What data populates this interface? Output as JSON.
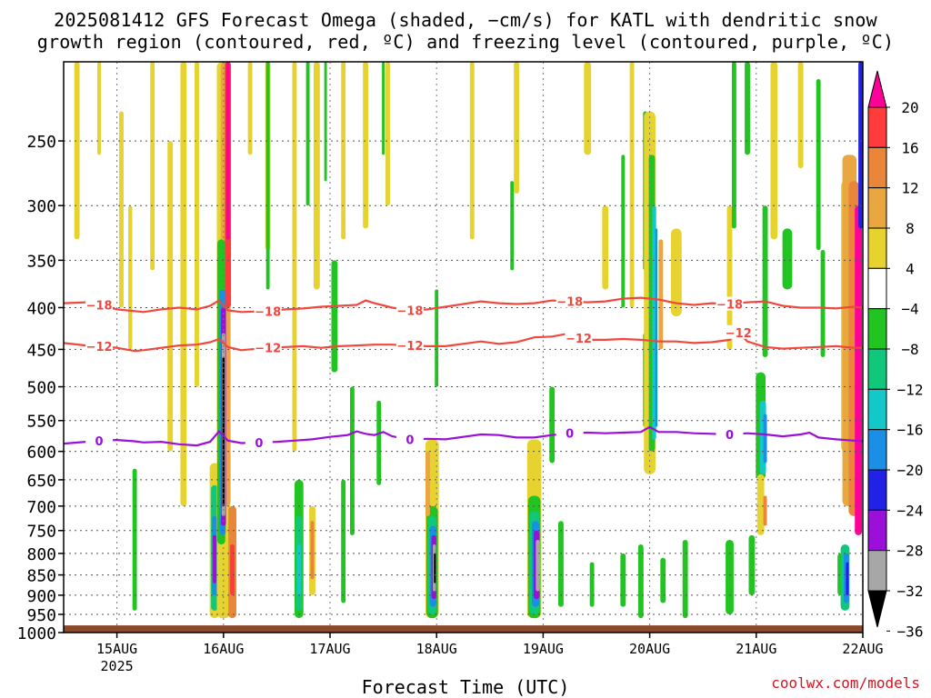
{
  "title": {
    "line1": "2025081412 GFS Forecast Omega (shaded, −cm/s) for KATL with dendritic snow",
    "line2": "growth region (contoured, red, ºC) and freezing level (contoured, purple, ºC)"
  },
  "credit": "coolwx.com/models",
  "chart_data": {
    "type": "heatmap",
    "title": "2025081412 GFS Forecast Omega (shaded, −cm/s) for KATL with dendritic snow growth region (contoured, red, ºC) and freezing level (contoured, purple, ºC)",
    "xlabel": "Forecast Time (UTC)",
    "ylabel": "",
    "x_ticks": [
      {
        "label": "15AUG",
        "sub": "2025",
        "hours": 12
      },
      {
        "label": "16AUG",
        "sub": "",
        "hours": 36
      },
      {
        "label": "17AUG",
        "sub": "",
        "hours": 60
      },
      {
        "label": "18AUG",
        "sub": "",
        "hours": 84
      },
      {
        "label": "19AUG",
        "sub": "",
        "hours": 108
      },
      {
        "label": "20AUG",
        "sub": "",
        "hours": 132
      },
      {
        "label": "21AUG",
        "sub": "",
        "hours": 156
      },
      {
        "label": "22AUG",
        "sub": "",
        "hours": 180
      }
    ],
    "xlim_hours": [
      0,
      180
    ],
    "y_ticks": [
      250,
      300,
      350,
      400,
      450,
      500,
      550,
      600,
      650,
      700,
      750,
      800,
      850,
      900,
      950,
      1000
    ],
    "ylim_hpa": [
      200,
      1000
    ],
    "y_scale": "log-pressure",
    "grid": true,
    "surface_band_hpa": 980,
    "colorbar": {
      "labels": [
        "20",
        "16",
        "12",
        "8",
        "4",
        "−4",
        "−8",
        "−12",
        "−16",
        "−20",
        "−24",
        "−28",
        "−32",
        "−36"
      ],
      "colors": [
        "#ff0099",
        "#ff3b3b",
        "#e9863a",
        "#e9a641",
        "#e6d32f",
        "#ffffff",
        "#22c422",
        "#11c77b",
        "#13c8c8",
        "#1b8fe6",
        "#2222e6",
        "#9a10d9",
        "#a7a7a7",
        "#000000"
      ]
    },
    "contours": [
      {
        "label": "−18",
        "color": "#f0483e",
        "points": [
          [
            0,
            395
          ],
          [
            5,
            394
          ],
          [
            8,
            397
          ],
          [
            12,
            402
          ],
          [
            18,
            405
          ],
          [
            22,
            402
          ],
          [
            26,
            400
          ],
          [
            30,
            402
          ],
          [
            33,
            398
          ],
          [
            35,
            392
          ],
          [
            37,
            403
          ],
          [
            40,
            405
          ],
          [
            46,
            404
          ],
          [
            50,
            402
          ],
          [
            54,
            401
          ],
          [
            58,
            399
          ],
          [
            62,
            398
          ],
          [
            66,
            397
          ],
          [
            68,
            392
          ],
          [
            70,
            395
          ],
          [
            74,
            400
          ],
          [
            78,
            403
          ],
          [
            82,
            402
          ],
          [
            86,
            399
          ],
          [
            90,
            396
          ],
          [
            94,
            393
          ],
          [
            98,
            395
          ],
          [
            102,
            396
          ],
          [
            106,
            395
          ],
          [
            110,
            392
          ],
          [
            114,
            393
          ],
          [
            118,
            394
          ],
          [
            122,
            393
          ],
          [
            126,
            390
          ],
          [
            130,
            389
          ],
          [
            134,
            391
          ],
          [
            138,
            395
          ],
          [
            142,
            397
          ],
          [
            146,
            395
          ],
          [
            150,
            396
          ],
          [
            154,
            394
          ],
          [
            158,
            393
          ],
          [
            162,
            398
          ],
          [
            166,
            400
          ],
          [
            170,
            400
          ],
          [
            174,
            401
          ],
          [
            178,
            399
          ],
          [
            180,
            400
          ]
        ]
      },
      {
        "label": "−12",
        "color": "#f0483e",
        "points": [
          [
            0,
            442
          ],
          [
            5,
            445
          ],
          [
            8,
            446
          ],
          [
            12,
            448
          ],
          [
            16,
            452
          ],
          [
            18,
            451
          ],
          [
            22,
            448
          ],
          [
            26,
            445
          ],
          [
            30,
            444
          ],
          [
            33,
            441
          ],
          [
            35,
            437
          ],
          [
            37,
            447
          ],
          [
            40,
            451
          ],
          [
            46,
            448
          ],
          [
            50,
            447
          ],
          [
            54,
            446
          ],
          [
            58,
            448
          ],
          [
            62,
            446
          ],
          [
            66,
            445
          ],
          [
            70,
            444
          ],
          [
            74,
            444
          ],
          [
            78,
            445
          ],
          [
            82,
            446
          ],
          [
            86,
            446
          ],
          [
            90,
            443
          ],
          [
            94,
            440
          ],
          [
            98,
            443
          ],
          [
            102,
            441
          ],
          [
            106,
            435
          ],
          [
            110,
            434
          ],
          [
            113,
            431
          ],
          [
            116,
            436
          ],
          [
            118,
            438
          ],
          [
            122,
            438
          ],
          [
            126,
            437
          ],
          [
            130,
            438
          ],
          [
            134,
            440
          ],
          [
            138,
            440
          ],
          [
            142,
            442
          ],
          [
            146,
            441
          ],
          [
            150,
            438
          ],
          [
            152,
            429
          ],
          [
            154,
            440
          ],
          [
            158,
            447
          ],
          [
            162,
            449
          ],
          [
            166,
            448
          ],
          [
            170,
            447
          ],
          [
            174,
            446
          ],
          [
            178,
            448
          ],
          [
            180,
            448
          ]
        ]
      },
      {
        "label": "0",
        "color": "#9a10d9",
        "points": [
          [
            0,
            587
          ],
          [
            5,
            584
          ],
          [
            8,
            582
          ],
          [
            12,
            581
          ],
          [
            16,
            583
          ],
          [
            18,
            585
          ],
          [
            22,
            584
          ],
          [
            26,
            588
          ],
          [
            30,
            590
          ],
          [
            33,
            584
          ],
          [
            35,
            567
          ],
          [
            37,
            582
          ],
          [
            40,
            586
          ],
          [
            44,
            585
          ],
          [
            48,
            584
          ],
          [
            52,
            582
          ],
          [
            56,
            580
          ],
          [
            60,
            576
          ],
          [
            64,
            573
          ],
          [
            66,
            567
          ],
          [
            68,
            571
          ],
          [
            70,
            573
          ],
          [
            72,
            568
          ],
          [
            74,
            575
          ],
          [
            78,
            580
          ],
          [
            82,
            579
          ],
          [
            86,
            580
          ],
          [
            90,
            576
          ],
          [
            94,
            572
          ],
          [
            98,
            573
          ],
          [
            102,
            577
          ],
          [
            106,
            577
          ],
          [
            110,
            573
          ],
          [
            114,
            570
          ],
          [
            118,
            569
          ],
          [
            122,
            570
          ],
          [
            126,
            569
          ],
          [
            130,
            568
          ],
          [
            132,
            560
          ],
          [
            134,
            568
          ],
          [
            138,
            568
          ],
          [
            142,
            570
          ],
          [
            146,
            571
          ],
          [
            150,
            572
          ],
          [
            154,
            570
          ],
          [
            158,
            572
          ],
          [
            162,
            575
          ],
          [
            166,
            572
          ],
          [
            168,
            569
          ],
          [
            170,
            577
          ],
          [
            174,
            580
          ],
          [
            178,
            582
          ],
          [
            180,
            583
          ]
        ]
      }
    ]
  }
}
